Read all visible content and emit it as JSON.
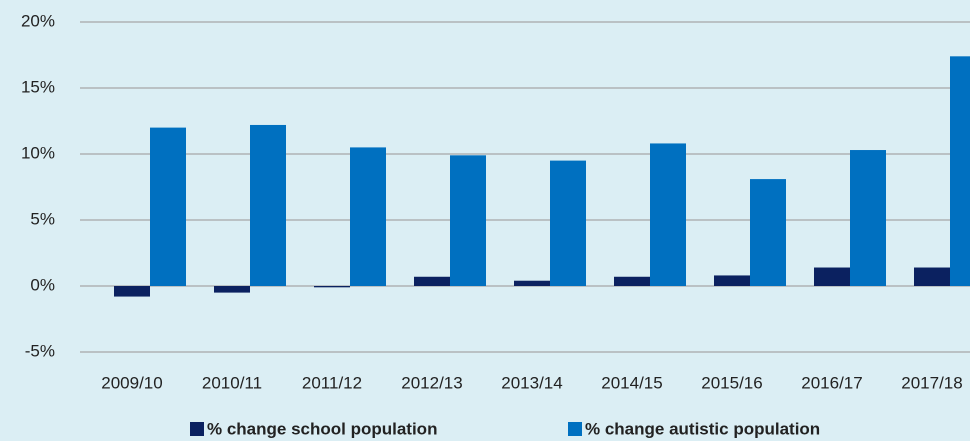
{
  "chart_data": {
    "type": "bar",
    "categories": [
      "2009/10",
      "2010/11",
      "2011/12",
      "2012/13",
      "2013/14",
      "2014/15",
      "2015/16",
      "2016/17",
      "2017/18"
    ],
    "series": [
      {
        "name": "% change school population",
        "color": "#0b2160",
        "values": [
          -0.8,
          -0.5,
          -0.1,
          0.7,
          0.4,
          0.7,
          0.8,
          1.4,
          1.4
        ]
      },
      {
        "name": "% change autistic population",
        "color": "#0070c0",
        "values": [
          12.0,
          12.2,
          10.5,
          9.9,
          9.5,
          10.8,
          8.1,
          10.3,
          17.4
        ]
      }
    ],
    "ylim": [
      -5,
      20
    ],
    "yticks": [
      {
        "value": -5,
        "label": "-5%"
      },
      {
        "value": 0,
        "label": "0%"
      },
      {
        "value": 5,
        "label": "5%"
      },
      {
        "value": 10,
        "label": "10%"
      },
      {
        "value": 15,
        "label": "15%"
      },
      {
        "value": 20,
        "label": "20%"
      }
    ],
    "grid": true
  }
}
